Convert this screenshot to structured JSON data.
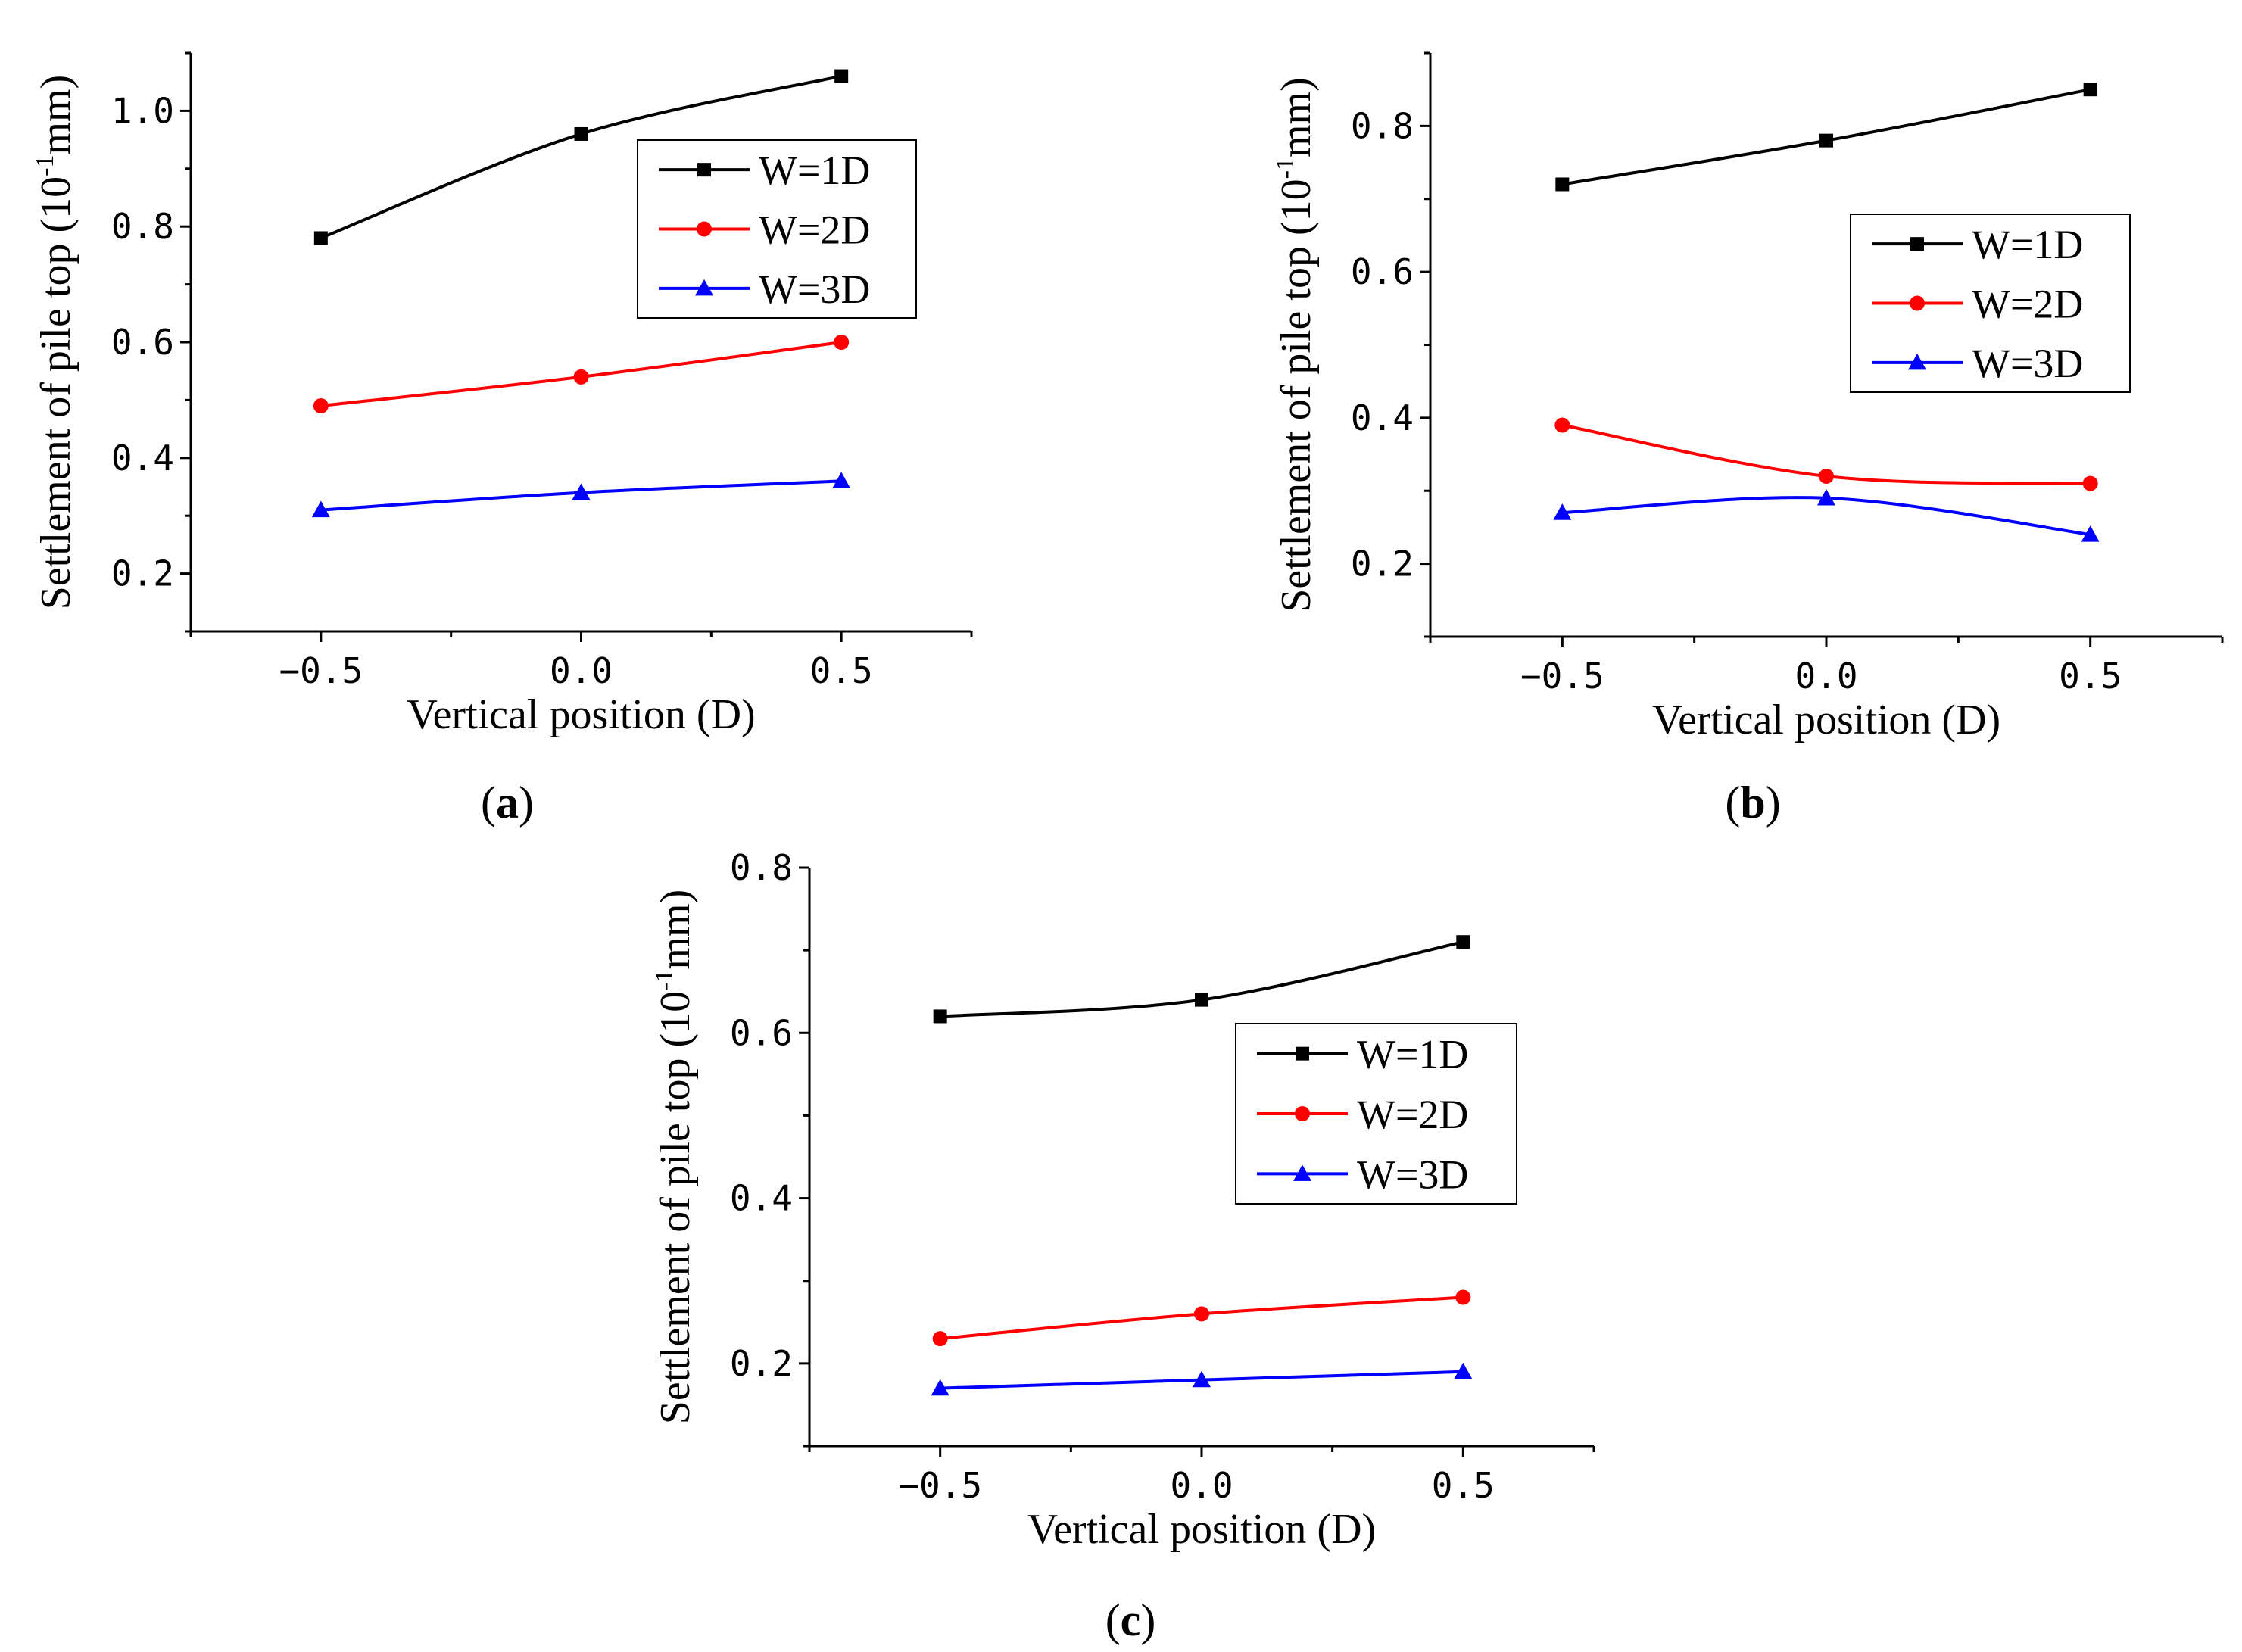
{
  "figure": {
    "panels": [
      {
        "id": "a",
        "label_letter": "a"
      },
      {
        "id": "b",
        "label_letter": "b"
      },
      {
        "id": "c",
        "label_letter": "c"
      }
    ]
  },
  "chart_data": [
    {
      "type": "line",
      "panel": "(a)",
      "xlabel": "Vertical position (D)",
      "ylabel": "Settlement of pile top (10-1mm)",
      "x": [
        -0.5,
        0.0,
        0.5
      ],
      "xticks": [
        "-0.5",
        "0.0",
        "0.5"
      ],
      "yticks": [
        "0.2",
        "0.4",
        "0.6",
        "0.8",
        "1.0"
      ],
      "xlim": [
        -0.75,
        0.75
      ],
      "ylim": [
        0.1,
        1.1
      ],
      "legend_position": "top-right",
      "series": [
        {
          "name": "W=1D",
          "color": "#000000",
          "marker": "square",
          "values": [
            0.78,
            0.96,
            1.06
          ]
        },
        {
          "name": "W=2D",
          "color": "#ff0000",
          "marker": "circle",
          "values": [
            0.49,
            0.54,
            0.6
          ]
        },
        {
          "name": "W=3D",
          "color": "#0000ff",
          "marker": "triangle",
          "values": [
            0.31,
            0.34,
            0.36
          ]
        }
      ]
    },
    {
      "type": "line",
      "panel": "(b)",
      "xlabel": "Vertical position (D)",
      "ylabel": "Settlement of pile top (10-1mm)",
      "x": [
        -0.5,
        0.0,
        0.5
      ],
      "xticks": [
        "-0.5",
        "0.0",
        "0.5"
      ],
      "yticks": [
        "0.2",
        "0.4",
        "0.6",
        "0.8"
      ],
      "xlim": [
        -0.75,
        0.75
      ],
      "ylim": [
        0.1,
        0.9
      ],
      "legend_position": "right",
      "series": [
        {
          "name": "W=1D",
          "color": "#000000",
          "marker": "square",
          "values": [
            0.72,
            0.78,
            0.85
          ]
        },
        {
          "name": "W=2D",
          "color": "#ff0000",
          "marker": "circle",
          "values": [
            0.39,
            0.32,
            0.31
          ]
        },
        {
          "name": "W=3D",
          "color": "#0000ff",
          "marker": "triangle",
          "values": [
            0.27,
            0.29,
            0.24
          ]
        }
      ]
    },
    {
      "type": "line",
      "panel": "(c)",
      "xlabel": "Vertical position (D)",
      "ylabel": "Settlement of pile top (10-1mm)",
      "x": [
        -0.5,
        0.0,
        0.5
      ],
      "xticks": [
        "-0.5",
        "0.0",
        "0.5"
      ],
      "yticks": [
        "0.2",
        "0.4",
        "0.6",
        "0.8"
      ],
      "xlim": [
        -0.75,
        0.75
      ],
      "ylim": [
        0.1,
        0.8
      ],
      "legend_position": "top-right",
      "series": [
        {
          "name": "W=1D",
          "color": "#000000",
          "marker": "square",
          "values": [
            0.62,
            0.64,
            0.71
          ]
        },
        {
          "name": "W=2D",
          "color": "#ff0000",
          "marker": "circle",
          "values": [
            0.23,
            0.26,
            0.28
          ]
        },
        {
          "name": "W=3D",
          "color": "#0000ff",
          "marker": "triangle",
          "values": [
            0.17,
            0.18,
            0.19
          ]
        }
      ]
    }
  ]
}
